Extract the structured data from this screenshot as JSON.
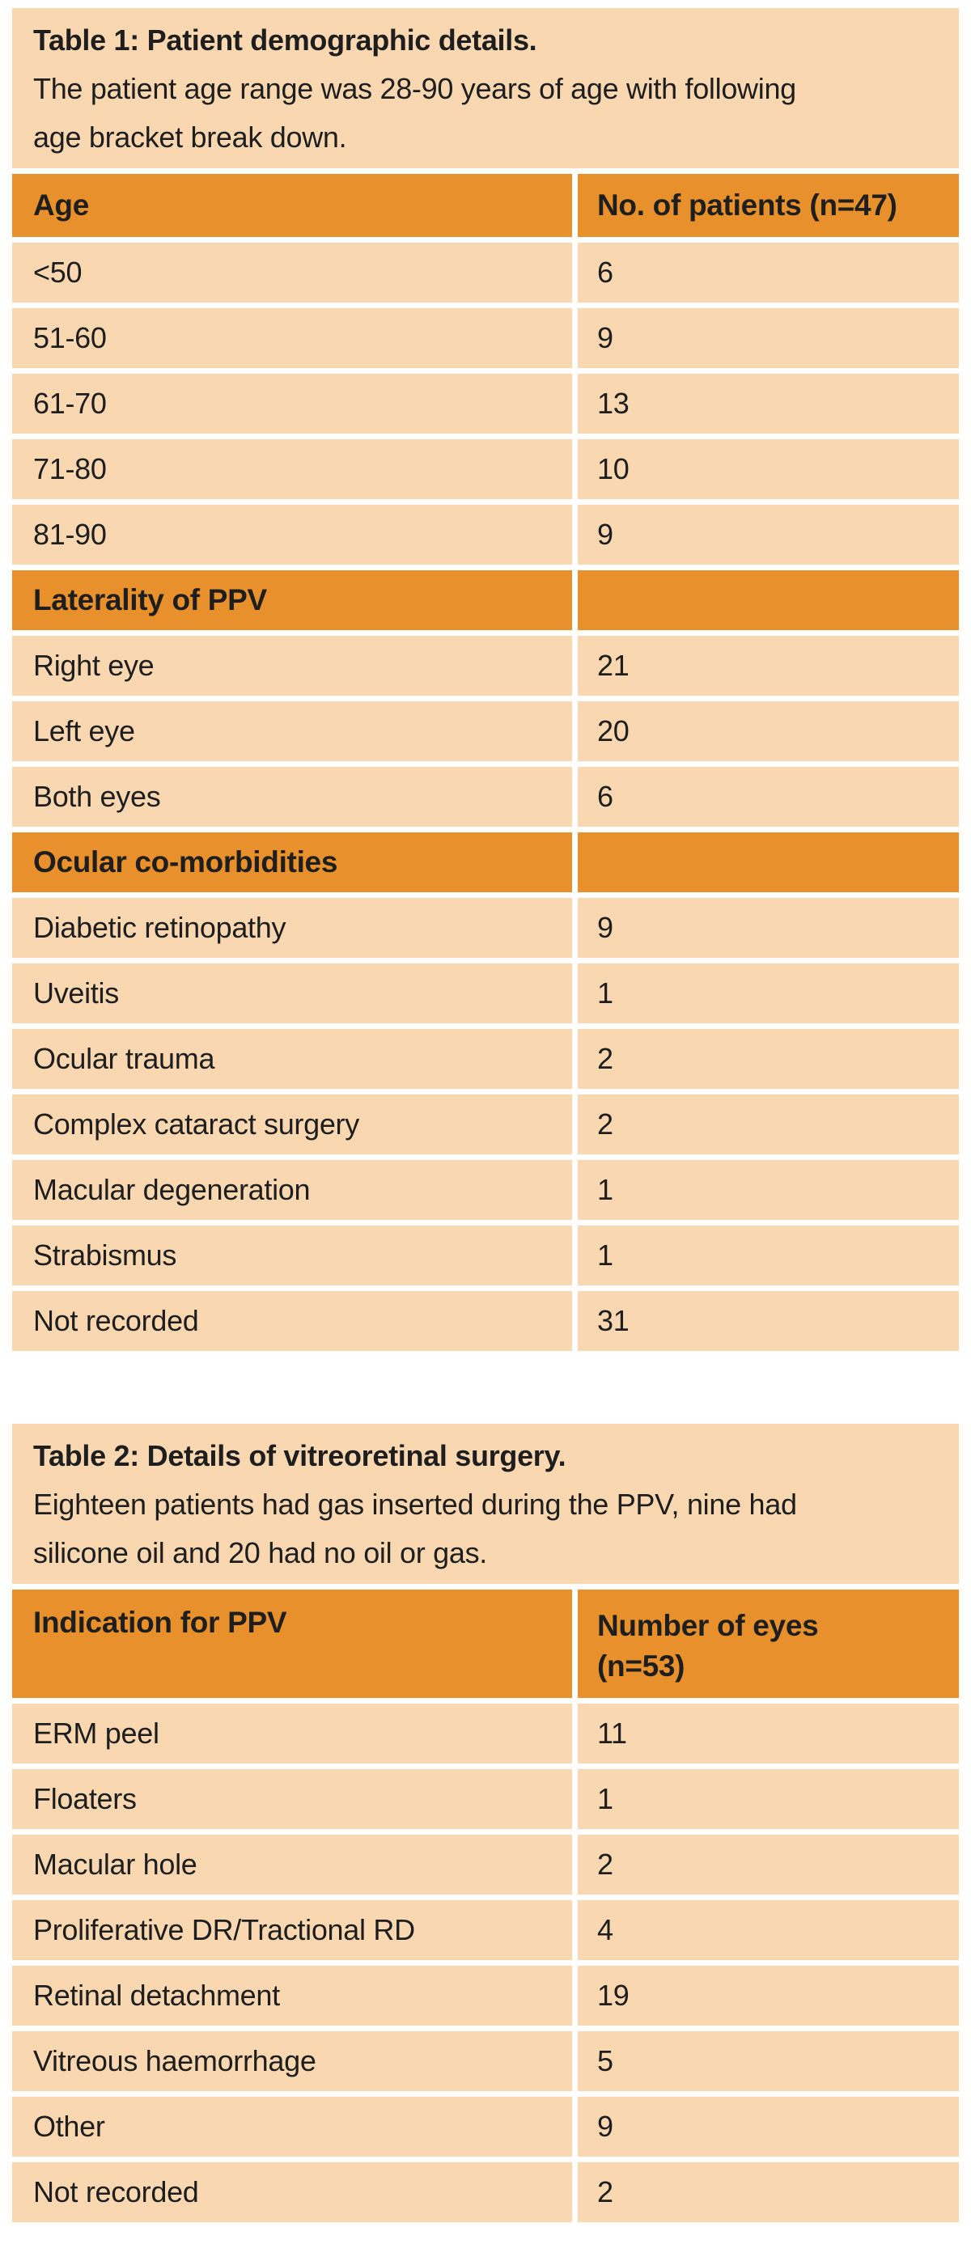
{
  "colors": {
    "header_orange": "#e8912c",
    "cell_peach": "#f8d7b1",
    "text": "#1e1e1e",
    "gutter_white": "#ffffff"
  },
  "table1": {
    "title": "Table 1: Patient demographic details.",
    "caption_lines": [
      "The patient age range was 28-90 years of age with following",
      "age bracket break down."
    ],
    "header": {
      "label": "Age",
      "value": "No. of patients (n=47)"
    },
    "rows": [
      {
        "type": "data",
        "label": "<50",
        "value": "6"
      },
      {
        "type": "data",
        "label": "51-60",
        "value": "9"
      },
      {
        "type": "data",
        "label": "61-70",
        "value": "13"
      },
      {
        "type": "data",
        "label": "71-80",
        "value": "10"
      },
      {
        "type": "data",
        "label": "81-90",
        "value": "9"
      },
      {
        "type": "subheader",
        "label": "Laterality of PPV",
        "value": ""
      },
      {
        "type": "data",
        "label": "Right eye",
        "value": "21"
      },
      {
        "type": "data",
        "label": "Left eye",
        "value": "20"
      },
      {
        "type": "data",
        "label": "Both eyes",
        "value": "6"
      },
      {
        "type": "subheader",
        "label": "Ocular co-morbidities",
        "value": ""
      },
      {
        "type": "data",
        "label": "Diabetic retinopathy",
        "value": "9"
      },
      {
        "type": "data",
        "label": "Uveitis",
        "value": "1"
      },
      {
        "type": "data",
        "label": "Ocular trauma",
        "value": "2"
      },
      {
        "type": "data",
        "label": "Complex cataract surgery",
        "value": "2"
      },
      {
        "type": "data",
        "label": "Macular degeneration",
        "value": "1"
      },
      {
        "type": "data",
        "label": "Strabismus",
        "value": "1"
      },
      {
        "type": "data",
        "label": "Not recorded",
        "value": "31"
      }
    ]
  },
  "table2": {
    "title": "Table 2: Details of vitreoretinal surgery.",
    "caption_lines": [
      "Eighteen patients had gas inserted during the PPV, nine had",
      "silicone oil and 20 had no oil or gas."
    ],
    "header": {
      "label": "Indication for PPV",
      "value_lines": [
        "Number of eyes",
        "(n=53)"
      ]
    },
    "rows": [
      {
        "type": "data",
        "label": "ERM peel",
        "value": "11"
      },
      {
        "type": "data",
        "label": "Floaters",
        "value": "1"
      },
      {
        "type": "data",
        "label": "Macular hole",
        "value": "2"
      },
      {
        "type": "data",
        "label": "Proliferative DR/Tractional RD",
        "value": "4"
      },
      {
        "type": "data",
        "label": "Retinal detachment",
        "value": "19"
      },
      {
        "type": "data",
        "label": "Vitreous haemorrhage",
        "value": "5"
      },
      {
        "type": "data",
        "label": "Other",
        "value": "9"
      },
      {
        "type": "data",
        "label": "Not recorded",
        "value": "2"
      }
    ]
  }
}
